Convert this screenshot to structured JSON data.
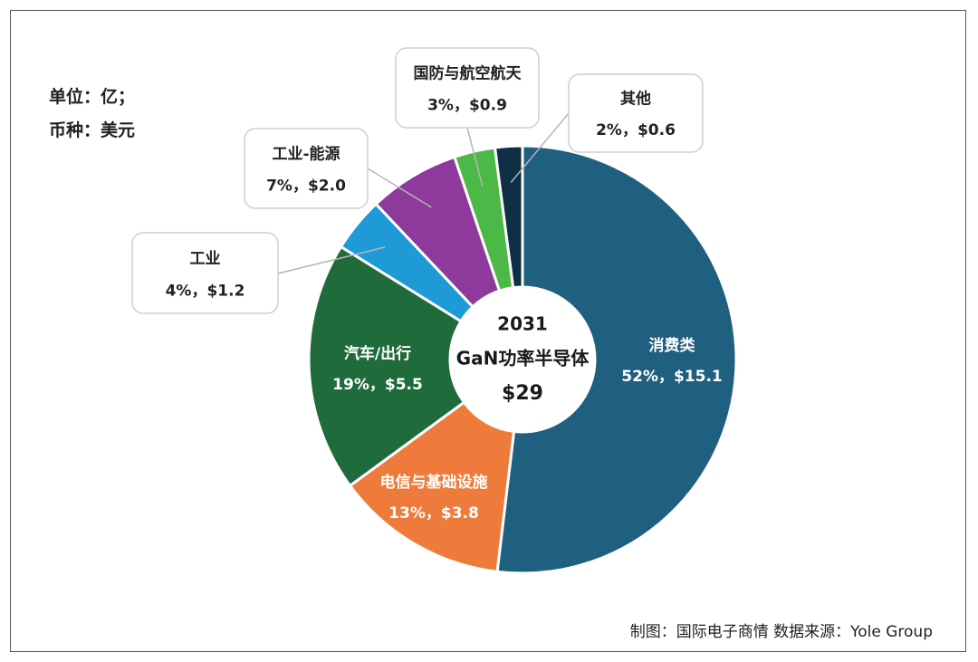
{
  "unit_lines": [
    "单位：亿；",
    "币种：美元"
  ],
  "footer": "制图：国际电子商情 数据来源：Yole Group",
  "chart_data": {
    "type": "pie",
    "title": "2031 GaN功率半导体",
    "center_text": [
      "2031",
      "GaN功率半导体",
      "$29"
    ],
    "total": 29,
    "unit": "$ 亿",
    "slices": [
      {
        "name": "消费类",
        "pct": "52%",
        "value_label": "$15.1",
        "value": 15.1,
        "color": "#1f5f80",
        "label_mode": "inside",
        "text_color": "#ffffff"
      },
      {
        "name": "电信与基础设施",
        "pct": "13%",
        "value_label": "$3.8",
        "value": 3.8,
        "color": "#ee7b3c",
        "label_mode": "inside",
        "text_color": "#ffffff"
      },
      {
        "name": "汽车/出行",
        "pct": "19%",
        "value_label": "$5.5",
        "value": 5.5,
        "color": "#1f6b3b",
        "label_mode": "inside",
        "text_color": "#ffffff"
      },
      {
        "name": "工业",
        "pct": "4%",
        "value_label": "$1.2",
        "value": 1.2,
        "color": "#1e9ad6",
        "label_mode": "callout",
        "text_color": "#222222"
      },
      {
        "name": "工业-能源",
        "pct": "7%",
        "value_label": "$2.0",
        "value": 2.0,
        "color": "#8e3a9c",
        "label_mode": "callout",
        "text_color": "#222222"
      },
      {
        "name": "国防与航空航天",
        "pct": "3%",
        "value_label": "$0.9",
        "value": 0.9,
        "color": "#4cb848",
        "label_mode": "callout",
        "text_color": "#222222"
      },
      {
        "name": "其他",
        "pct": "2%",
        "value_label": "$0.6",
        "value": 0.6,
        "color": "#0e2f44",
        "label_mode": "callout",
        "text_color": "#222222"
      }
    ]
  }
}
